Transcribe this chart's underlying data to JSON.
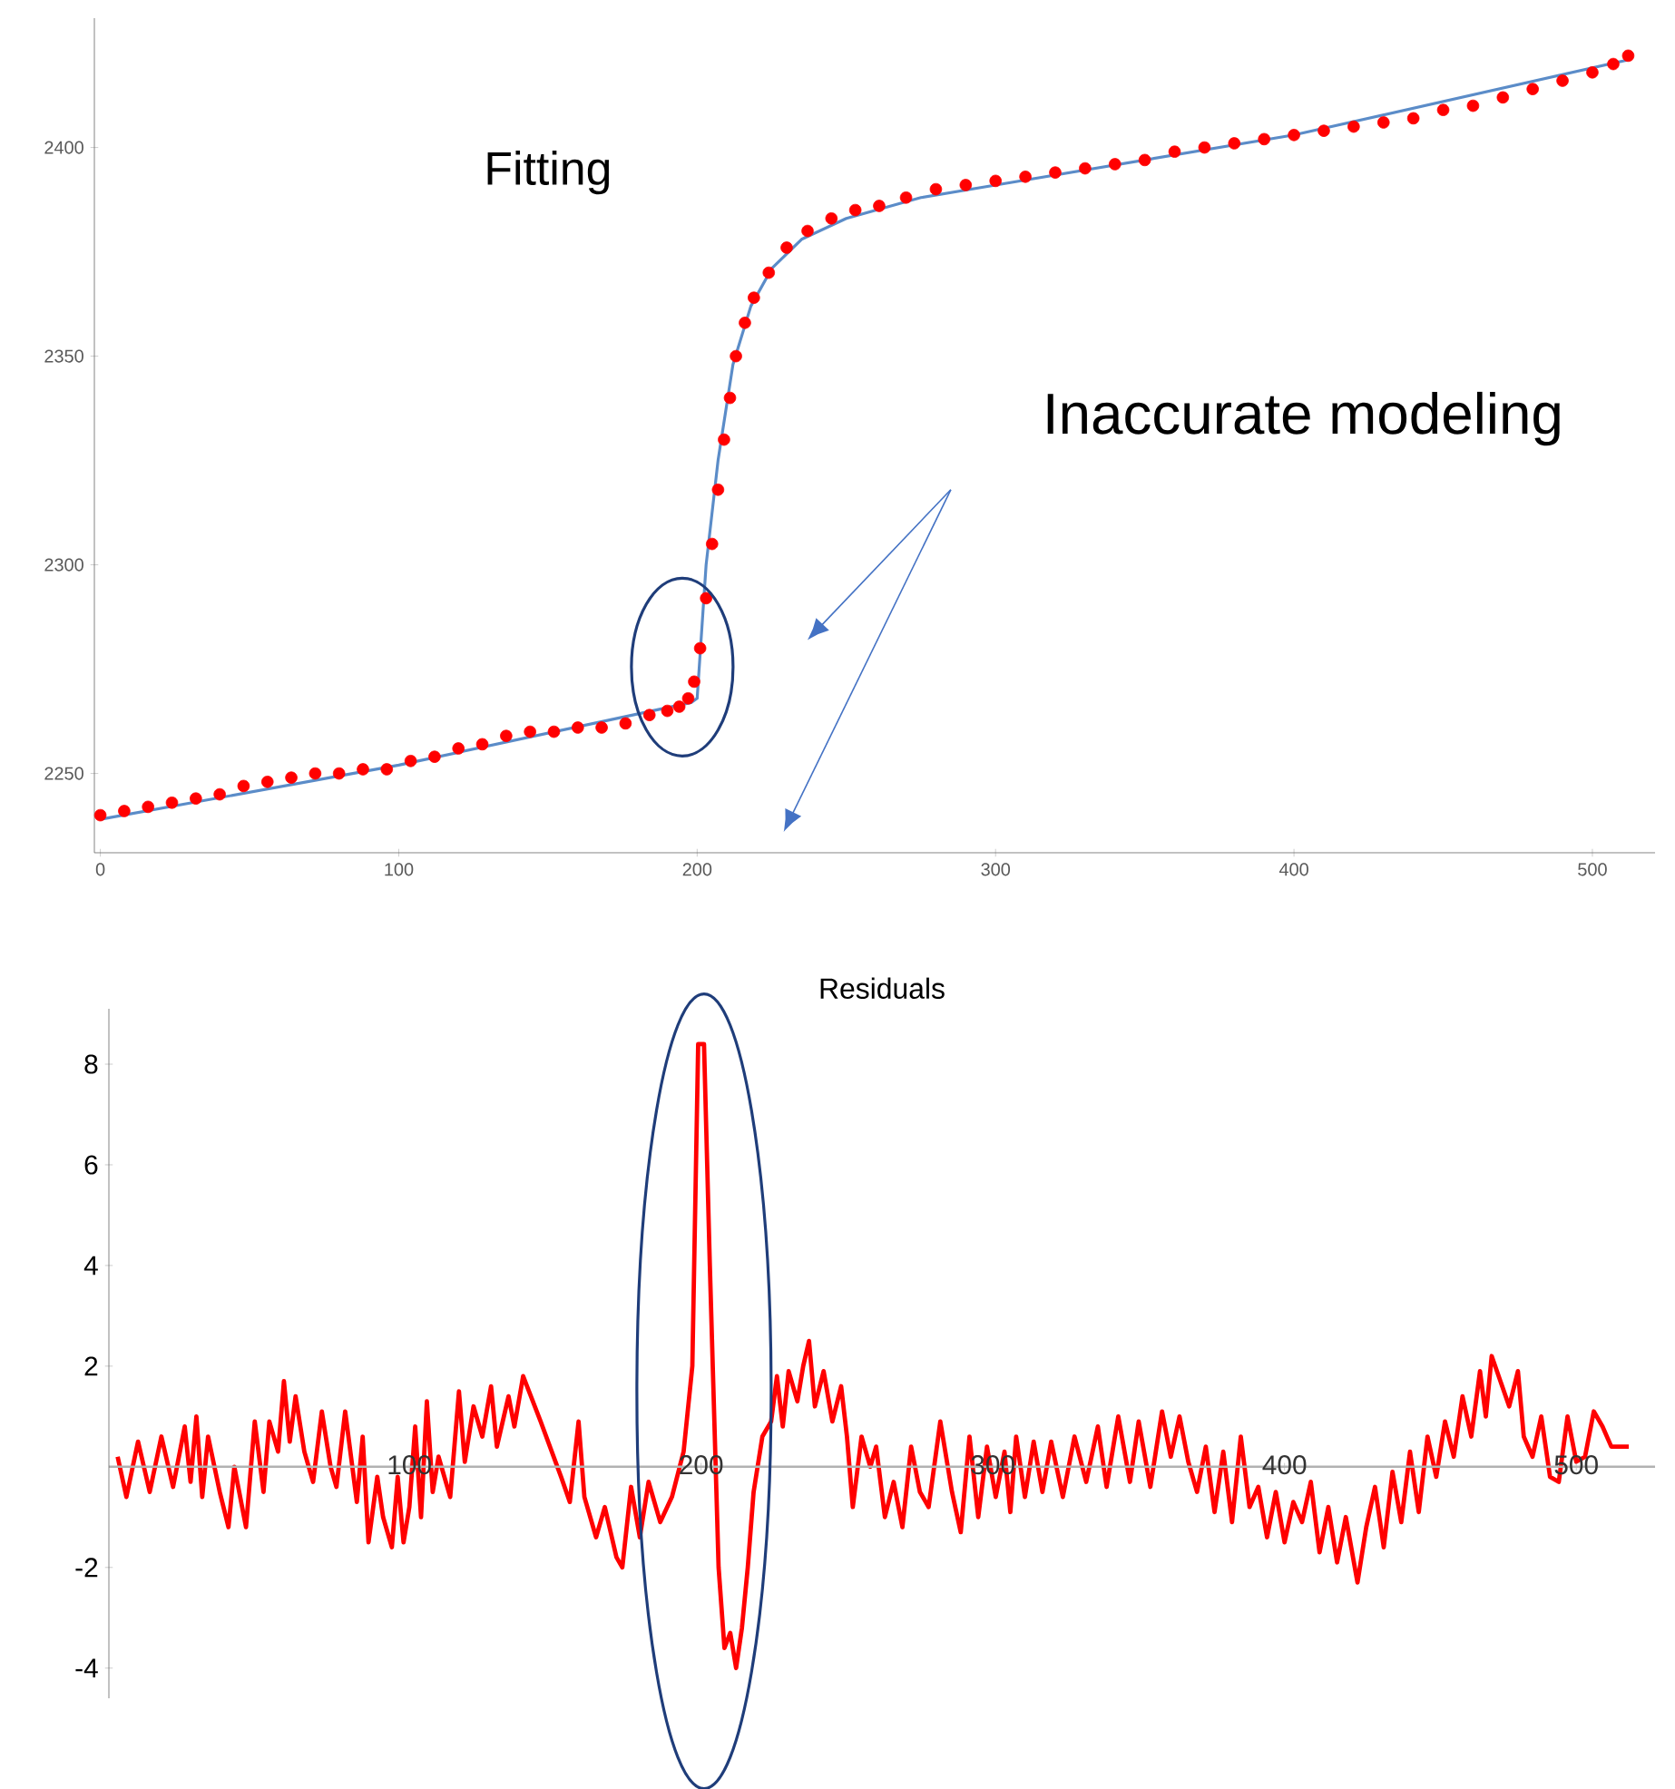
{
  "chart_data": [
    {
      "type": "scatter",
      "annotations": [
        "Fitting",
        "Inaccurate modeling"
      ],
      "xlim": [
        -2,
        521
      ],
      "ylim": [
        2231,
        2431
      ],
      "xticks": [
        0,
        100,
        200,
        300,
        400,
        500
      ],
      "yticks": [
        2250,
        2300,
        2350,
        2400
      ],
      "series": [
        {
          "color": "#ff0000",
          "marker": "circle",
          "x": [
            0,
            8,
            16,
            24,
            32,
            40,
            48,
            56,
            64,
            72,
            80,
            88,
            96,
            104,
            112,
            120,
            128,
            136,
            144,
            152,
            160,
            168,
            176,
            184,
            190,
            194,
            197,
            199,
            201,
            203,
            205,
            207,
            209,
            211,
            213,
            216,
            219,
            224,
            230,
            237,
            245,
            253,
            261,
            270,
            280,
            290,
            300,
            310,
            320,
            330,
            340,
            350,
            360,
            370,
            380,
            390,
            400,
            410,
            420,
            430,
            440,
            450,
            460,
            470,
            480,
            490,
            500,
            507,
            512
          ],
          "values": [
            2240,
            2241,
            2242,
            2243,
            2244,
            2245,
            2247,
            2248,
            2249,
            2250,
            2250,
            2251,
            2251,
            2253,
            2254,
            2256,
            2257,
            2259,
            2260,
            2260,
            2261,
            2261,
            2262,
            2264,
            2265,
            2266,
            2268,
            2272,
            2280,
            2292,
            2305,
            2318,
            2330,
            2340,
            2350,
            2358,
            2364,
            2370,
            2376,
            2380,
            2383,
            2385,
            2386,
            2388,
            2390,
            2391,
            2392,
            2393,
            2394,
            2395,
            2396,
            2397,
            2399,
            2400,
            2401,
            2402,
            2403,
            2404,
            2405,
            2406,
            2407,
            2409,
            2410,
            2412,
            2414,
            2416,
            2418,
            2420,
            2422
          ]
        },
        {
          "type": "line",
          "color": "#5b8cc8",
          "marker": "none",
          "x": [
            0,
            100,
            198,
            200,
            203,
            207,
            212,
            218,
            225,
            235,
            250,
            275,
            300,
            400,
            512
          ],
          "values": [
            2239,
            2252,
            2267,
            2268,
            2300,
            2325,
            2348,
            2362,
            2371,
            2378,
            2383,
            2388,
            2391,
            2403,
            2421
          ]
        }
      ]
    },
    {
      "type": "line",
      "title": "Residuals",
      "xlim": [
        -3,
        527
      ],
      "ylim": [
        -4.6,
        9.1
      ],
      "xticks": [
        100,
        200,
        300,
        400,
        500
      ],
      "yticks": [
        -4,
        -2,
        2,
        4,
        6,
        8
      ],
      "series": [
        {
          "color": "#ff0000",
          "marker": "none",
          "x": [
            0,
            3,
            7,
            11,
            15,
            19,
            23,
            25,
            27,
            29,
            31,
            35,
            38,
            40,
            44,
            47,
            50,
            52,
            55,
            57,
            59,
            61,
            64,
            67,
            70,
            73,
            75,
            78,
            82,
            84,
            86,
            89,
            91,
            94,
            96,
            98,
            100,
            102,
            104,
            106,
            108,
            110,
            114,
            117,
            119,
            122,
            125,
            128,
            130,
            134,
            136,
            139,
            145,
            152,
            155,
            158,
            160,
            164,
            167,
            171,
            173,
            176,
            179,
            182,
            186,
            190,
            194,
            197,
            199,
            201,
            203,
            206,
            208,
            210,
            212,
            214,
            216,
            218,
            221,
            224,
            226,
            228,
            230,
            233,
            235,
            237,
            239,
            242,
            245,
            248,
            250,
            252,
            255,
            258,
            260,
            263,
            266,
            269,
            272,
            275,
            278,
            282,
            286,
            289,
            292,
            295,
            298,
            301,
            304,
            306,
            308,
            311,
            314,
            317,
            320,
            324,
            328,
            332,
            336,
            339,
            343,
            347,
            350,
            354,
            358,
            361,
            364,
            367,
            370,
            373,
            376,
            379,
            382,
            385,
            388,
            391,
            394,
            397,
            400,
            403,
            406,
            409,
            412,
            415,
            418,
            421,
            425,
            428,
            431,
            434,
            437,
            440,
            443,
            446,
            449,
            452,
            455,
            458,
            461,
            464,
            467,
            469,
            471,
            474,
            477,
            480,
            482,
            485,
            488,
            491,
            494,
            497,
            500,
            503,
            506,
            509,
            512,
            518
          ],
          "values": [
            0.2,
            -0.6,
            0.5,
            -0.5,
            0.6,
            -0.4,
            0.8,
            -0.3,
            1.0,
            -0.6,
            0.6,
            -0.5,
            -1.2,
            0,
            -1.2,
            0.9,
            -0.5,
            0.9,
            0.3,
            1.7,
            0.5,
            1.4,
            0.3,
            -0.3,
            1.1,
            0,
            -0.4,
            1.1,
            -0.7,
            0.6,
            -1.5,
            -0.2,
            -1.0,
            -1.6,
            -0.2,
            -1.5,
            -0.8,
            0.8,
            -1.0,
            1.3,
            -0.5,
            0.2,
            -0.6,
            1.5,
            0.1,
            1.2,
            0.6,
            1.6,
            0.4,
            1.4,
            0.8,
            1.8,
            0.9,
            -0.2,
            -0.7,
            0.9,
            -0.6,
            -1.4,
            -0.8,
            -1.8,
            -2.0,
            -0.4,
            -1.4,
            -0.3,
            -1.1,
            -0.6,
            0.3,
            2.0,
            8.4,
            8.4,
            4.0,
            -2.0,
            -3.6,
            -3.3,
            -4.0,
            -3.2,
            -2.0,
            -0.5,
            0.6,
            0.9,
            1.8,
            0.8,
            1.9,
            1.3,
            2.0,
            2.5,
            1.2,
            1.9,
            0.9,
            1.6,
            0.6,
            -0.8,
            0.6,
            0,
            0.4,
            -1.0,
            -0.3,
            -1.2,
            0.4,
            -0.5,
            -0.8,
            0.9,
            -0.5,
            -1.3,
            0.6,
            -1.0,
            0.4,
            -0.6,
            0.3,
            -0.9,
            0.6,
            -0.6,
            0.5,
            -0.5,
            0.5,
            -0.6,
            0.6,
            -0.3,
            0.8,
            -0.4,
            1.0,
            -0.3,
            0.9,
            -0.4,
            1.1,
            0.2,
            1.0,
            0.1,
            -0.5,
            0.4,
            -0.9,
            0.3,
            -1.1,
            0.6,
            -0.8,
            -0.4,
            -1.4,
            -0.5,
            -1.5,
            -0.7,
            -1.1,
            -0.3,
            -1.7,
            -0.8,
            -1.9,
            -1.0,
            -2.3,
            -1.2,
            -0.4,
            -1.6,
            -0.1,
            -1.1,
            0.3,
            -0.9,
            0.6,
            -0.2,
            0.9,
            0.2,
            1.4,
            0.6,
            1.9,
            1.0,
            2.2,
            1.7,
            1.2,
            1.9,
            0.6,
            0.2,
            1.0,
            -0.2,
            -0.3,
            1.0,
            0.1,
            0.2,
            1.1,
            0.8,
            0.4,
            0.4
          ]
        }
      ]
    }
  ]
}
